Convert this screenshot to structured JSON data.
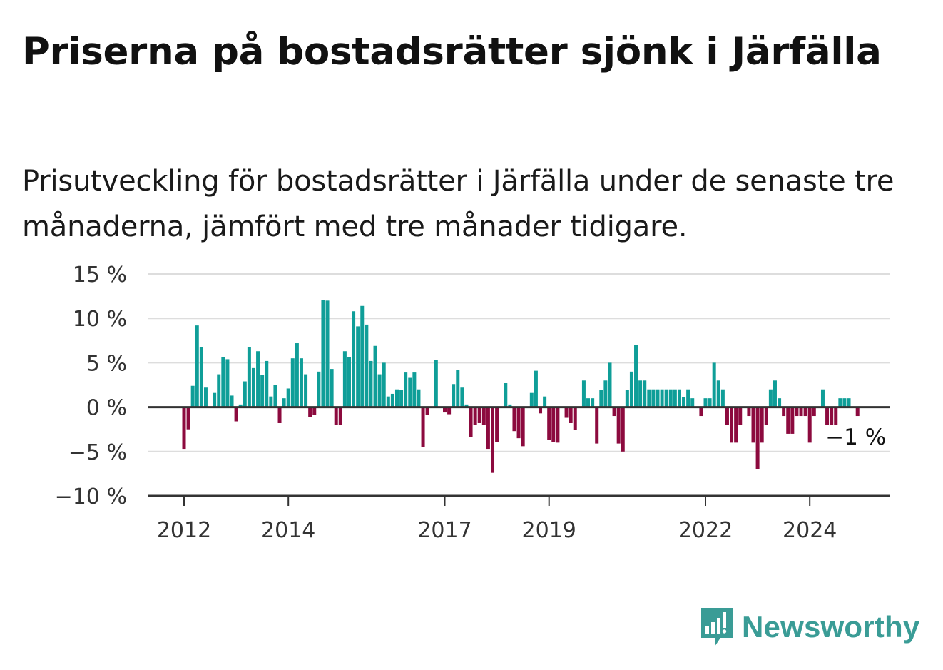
{
  "title": "Priserna på bostadsrätter sjönk i Järfälla",
  "subtitle": "Prisutveckling för bostadsrätter i Järfälla under de senaste tre månaderna, jämfört med tre månader tidigare.",
  "brand": {
    "name": "Newsworthy",
    "icon": "bar-chart-speech-bubble-icon",
    "color": "#3a9c96"
  },
  "colors": {
    "positive": "#0f9e98",
    "negative": "#8c0a3e",
    "grid": "#dddddd",
    "axis": "#333333"
  },
  "chart_data": {
    "type": "bar",
    "x_unit": "month",
    "start": "2012-01",
    "ylim": [
      -10,
      15
    ],
    "yticks": [
      15,
      10,
      5,
      0,
      -5,
      -10
    ],
    "ytick_labels": [
      "15 %",
      "10 %",
      "5 %",
      "0 %",
      "−5 %",
      "−10 %"
    ],
    "xtick_labels": [
      "2012",
      "2014",
      "2017",
      "2019",
      "2022",
      "2024"
    ],
    "grid": true,
    "annotation": {
      "label": "−1 %"
    },
    "values": [
      -4.7,
      -2.5,
      2.4,
      9.2,
      6.8,
      2.2,
      0,
      1.6,
      3.7,
      5.6,
      5.4,
      1.3,
      -1.6,
      0.3,
      2.9,
      6.8,
      4.4,
      6.3,
      3.6,
      5.2,
      1.2,
      2.5,
      -1.8,
      1.0,
      2.1,
      5.5,
      7.2,
      5.5,
      3.7,
      -1.1,
      -0.9,
      4.0,
      12.1,
      12.0,
      4.3,
      -2.0,
      -2.0,
      6.3,
      5.6,
      10.8,
      9.1,
      11.4,
      9.3,
      5.2,
      6.9,
      3.7,
      5.0,
      1.2,
      1.5,
      2.0,
      1.9,
      3.9,
      3.3,
      3.9,
      2.0,
      -4.5,
      -0.9,
      0,
      5.3,
      0,
      -0.6,
      -0.8,
      2.6,
      4.2,
      2.2,
      0.3,
      -3.4,
      -2.0,
      -1.8,
      -2.0,
      -4.7,
      -7.4,
      -3.9,
      0,
      2.7,
      0.3,
      -2.7,
      -3.5,
      -4.4,
      0,
      1.6,
      4.1,
      -0.7,
      1.2,
      -3.7,
      -3.9,
      -4.0,
      0,
      -1.2,
      -1.8,
      -2.6,
      0,
      3.0,
      1.0,
      1.0,
      -4.1,
      1.9,
      3.0,
      5.0,
      -1.0,
      -4.1,
      -5.0,
      1.9,
      4.0,
      7.0,
      3.0,
      3.0,
      2.0,
      2.0,
      2.0,
      2.0,
      2.0,
      2.0,
      2.0,
      2.0,
      1.1,
      2.0,
      1.0,
      0,
      -1.0,
      1.0,
      1.0,
      5.0,
      3.0,
      2.0,
      -2.0,
      -4.0,
      -4.0,
      -2.0,
      0,
      -1.0,
      -4.0,
      -7.0,
      -4.0,
      -2.0,
      2.0,
      3.0,
      1.0,
      -1.0,
      -3.0,
      -3.0,
      -1.0,
      -1.0,
      -1.0,
      -4.0,
      -1.0,
      0,
      2.0,
      -2.0,
      -2.0,
      -2.0,
      1.0,
      1.0,
      1.0,
      0,
      -1.0
    ]
  }
}
